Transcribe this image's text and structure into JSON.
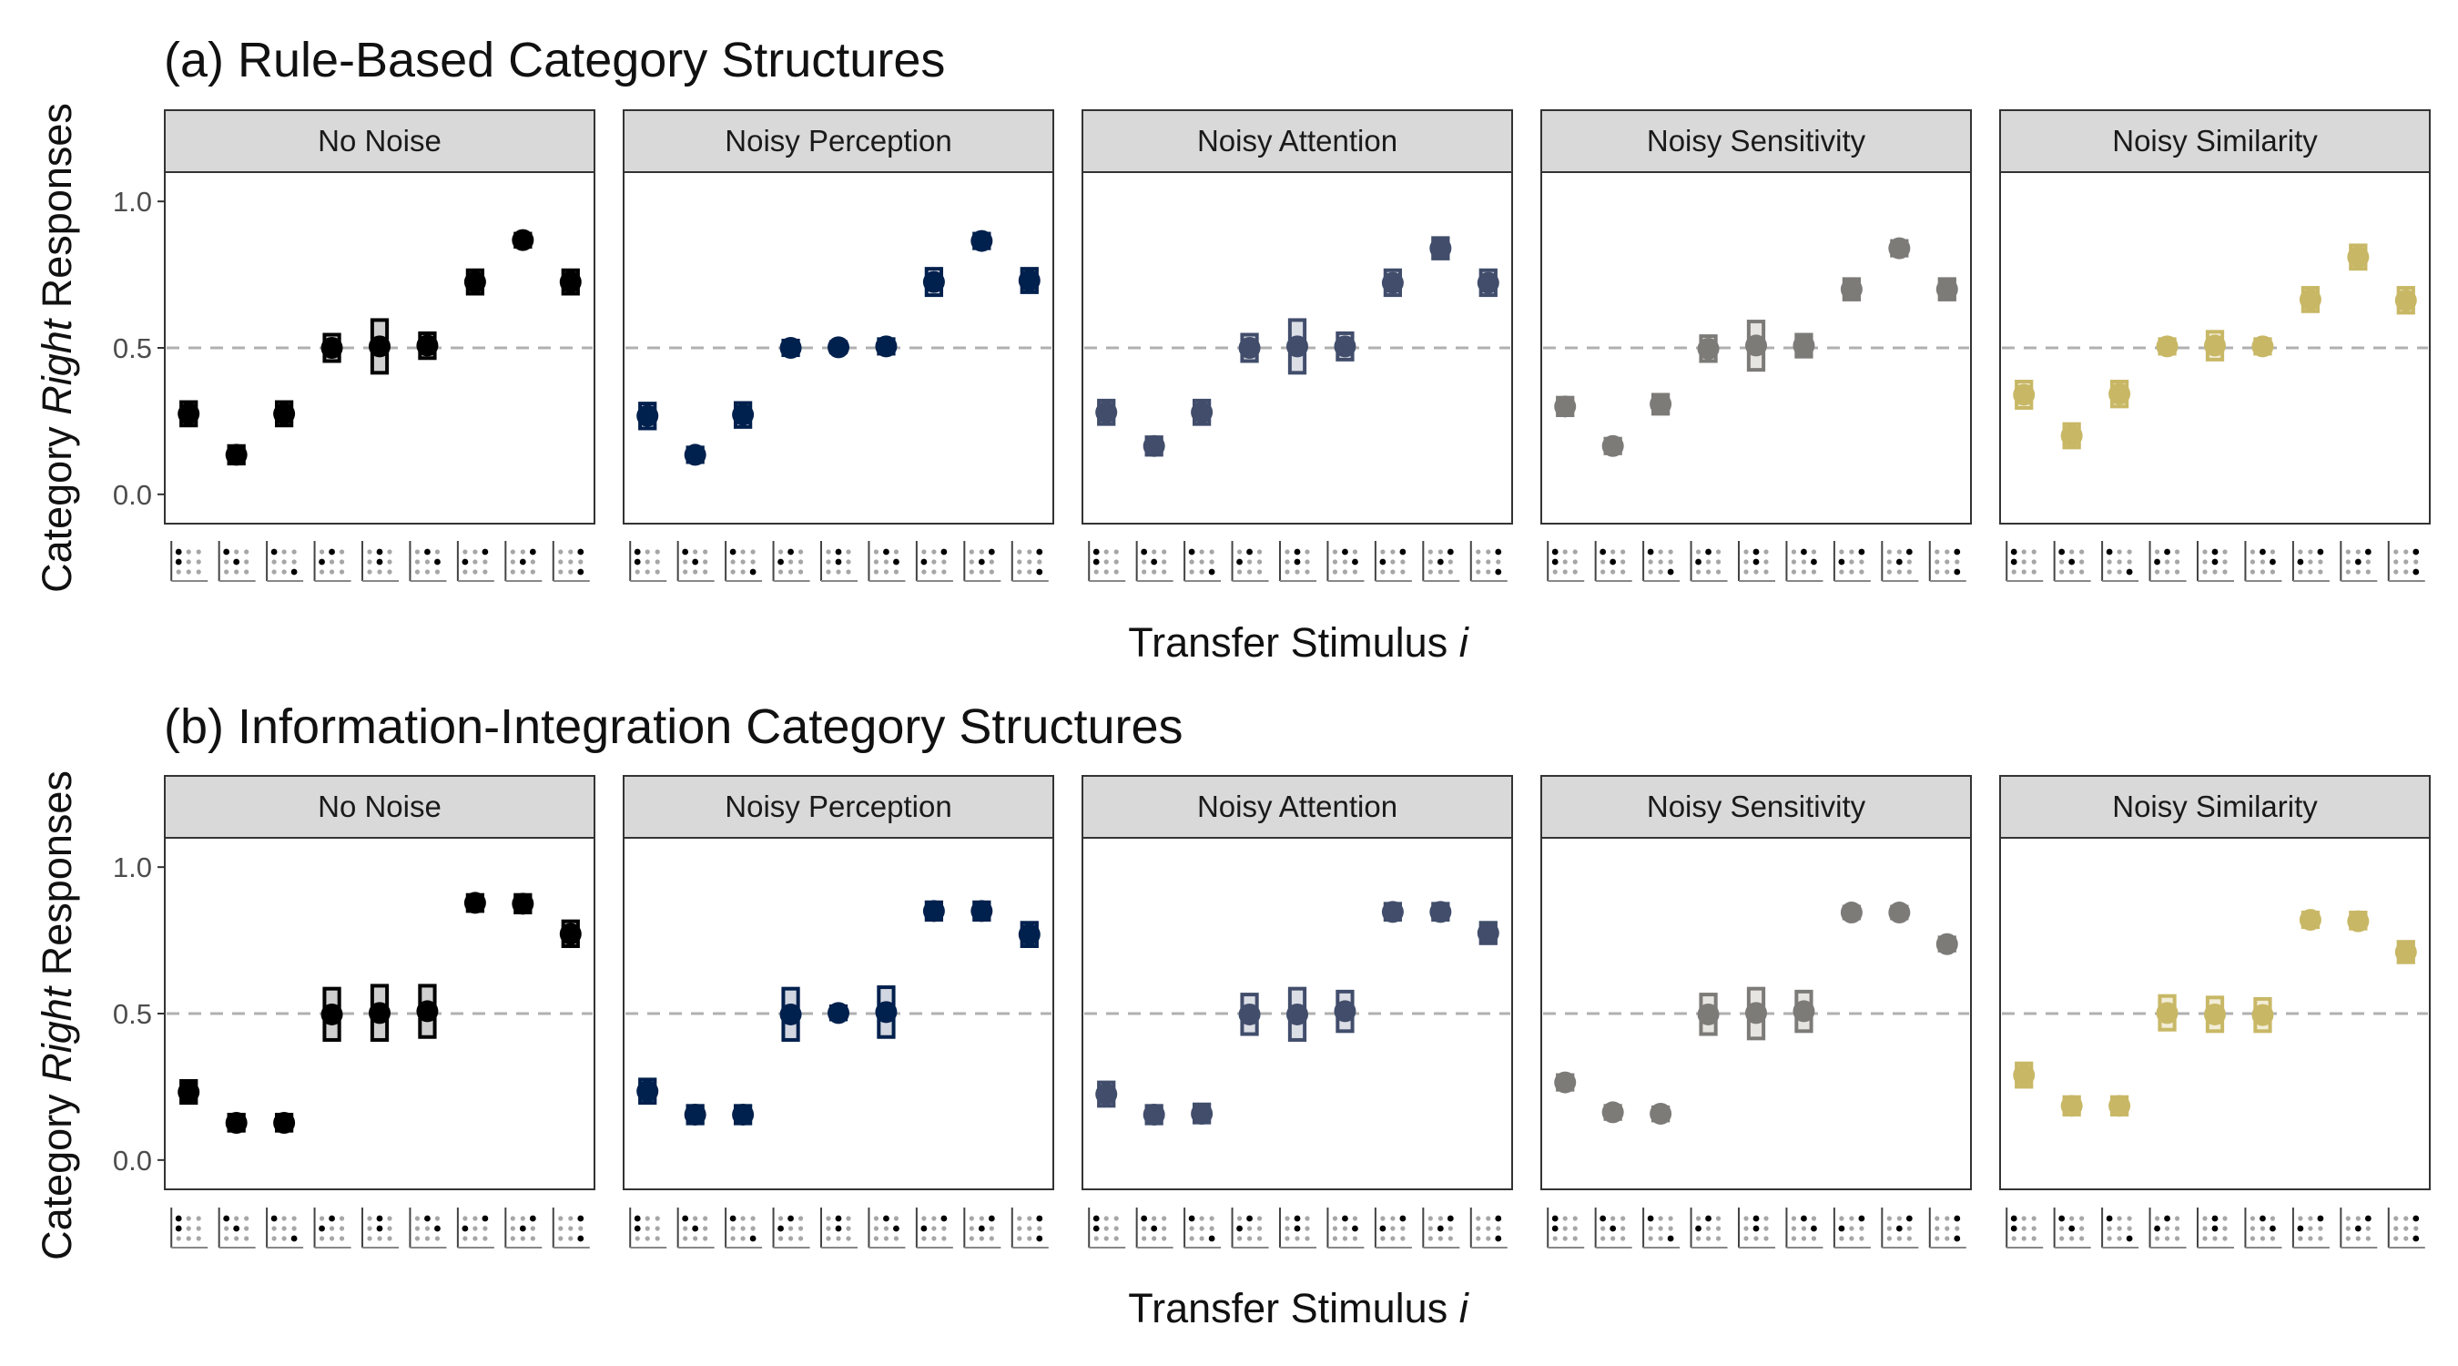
{
  "colors": {
    "No Noise": "#000000",
    "Noisy Perception": "#00204d",
    "Noisy Attention": "#414d6b",
    "Noisy Sensitivity": "#7c7b78",
    "Noisy Similarity": "#c8b866"
  },
  "fills": {
    "No Noise": "#cfcfcf",
    "Noisy Perception": "#d1d6e0",
    "Noisy Attention": "#dcdee6",
    "Noisy Sensitivity": "#e6e5e2",
    "Noisy Similarity": "#f2edd6"
  },
  "ylabel": {
    "pre": "Category ",
    "italic": "Right",
    "post": " Responses"
  },
  "xlabel": {
    "pre": "Transfer Stimulus ",
    "italic": "i"
  },
  "yticks": [
    "0.0",
    "0.5",
    "1.0"
  ],
  "stimuli": [
    {
      "dots": [
        [
          0,
          0
        ],
        [
          0,
          1
        ]
      ]
    },
    {
      "dots": [
        [
          0,
          0
        ],
        [
          1,
          1
        ]
      ]
    },
    {
      "dots": [
        [
          0,
          0
        ],
        [
          2,
          2
        ]
      ]
    },
    {
      "dots": [
        [
          1,
          0
        ],
        [
          0,
          1
        ]
      ]
    },
    {
      "dots": [
        [
          1,
          0
        ],
        [
          1,
          1
        ]
      ]
    },
    {
      "dots": [
        [
          1,
          0
        ],
        [
          2,
          1
        ]
      ]
    },
    {
      "dots": [
        [
          2,
          0
        ],
        [
          0,
          1
        ]
      ]
    },
    {
      "dots": [
        [
          2,
          0
        ],
        [
          1,
          1
        ]
      ]
    },
    {
      "dots": [
        [
          2,
          0
        ],
        [
          2,
          2
        ]
      ]
    }
  ],
  "chart_data": [
    {
      "type": "scatter",
      "title": "(a) Rule-Based Category Structures",
      "ylim": [
        0,
        1
      ],
      "reference_line": 0.5,
      "panels": [
        {
          "name": "No Noise",
          "points": [
            {
              "y": 0.275,
              "lo": 0.235,
              "hi": 0.315,
              "w": 0.62
            },
            {
              "y": 0.135,
              "lo": 0.105,
              "hi": 0.165,
              "w": 0.62
            },
            {
              "y": 0.275,
              "lo": 0.235,
              "hi": 0.315,
              "w": 0.62
            },
            {
              "y": 0.5,
              "lo": 0.455,
              "hi": 0.545,
              "w": 0.62
            },
            {
              "y": 0.505,
              "lo": 0.415,
              "hi": 0.595,
              "w": 0.62
            },
            {
              "y": 0.508,
              "lo": 0.465,
              "hi": 0.55,
              "w": 0.62
            },
            {
              "y": 0.725,
              "lo": 0.685,
              "hi": 0.765,
              "w": 0.62
            },
            {
              "y": 0.868,
              "lo": 0.845,
              "hi": 0.89,
              "w": 0.62
            },
            {
              "y": 0.725,
              "lo": 0.685,
              "hi": 0.765,
              "w": 0.62
            }
          ]
        },
        {
          "name": "Noisy Perception",
          "points": [
            {
              "y": 0.268,
              "lo": 0.225,
              "hi": 0.31,
              "w": 0.62
            },
            {
              "y": 0.135,
              "lo": 0.11,
              "hi": 0.16,
              "w": 0.62
            },
            {
              "y": 0.272,
              "lo": 0.23,
              "hi": 0.312,
              "w": 0.62
            },
            {
              "y": 0.5,
              "lo": 0.475,
              "hi": 0.525,
              "w": 0.62
            },
            {
              "y": 0.502,
              "lo": 0.485,
              "hi": 0.52,
              "w": 0.62
            },
            {
              "y": 0.505,
              "lo": 0.48,
              "hi": 0.53,
              "w": 0.62
            },
            {
              "y": 0.725,
              "lo": 0.68,
              "hi": 0.77,
              "w": 0.62
            },
            {
              "y": 0.865,
              "lo": 0.84,
              "hi": 0.89,
              "w": 0.62
            },
            {
              "y": 0.73,
              "lo": 0.69,
              "hi": 0.77,
              "w": 0.62
            }
          ]
        },
        {
          "name": "Noisy Attention",
          "points": [
            {
              "y": 0.28,
              "lo": 0.24,
              "hi": 0.32,
              "w": 0.62
            },
            {
              "y": 0.165,
              "lo": 0.135,
              "hi": 0.195,
              "w": 0.62
            },
            {
              "y": 0.28,
              "lo": 0.24,
              "hi": 0.32,
              "w": 0.62
            },
            {
              "y": 0.5,
              "lo": 0.455,
              "hi": 0.545,
              "w": 0.62
            },
            {
              "y": 0.505,
              "lo": 0.415,
              "hi": 0.595,
              "w": 0.62
            },
            {
              "y": 0.505,
              "lo": 0.46,
              "hi": 0.55,
              "w": 0.62
            },
            {
              "y": 0.722,
              "lo": 0.68,
              "hi": 0.765,
              "w": 0.62
            },
            {
              "y": 0.84,
              "lo": 0.805,
              "hi": 0.875,
              "w": 0.62
            },
            {
              "y": 0.722,
              "lo": 0.68,
              "hi": 0.765,
              "w": 0.62
            }
          ]
        },
        {
          "name": "Noisy Sensitivity",
          "points": [
            {
              "y": 0.3,
              "lo": 0.27,
              "hi": 0.33,
              "w": 0.62
            },
            {
              "y": 0.165,
              "lo": 0.14,
              "hi": 0.19,
              "w": 0.62
            },
            {
              "y": 0.308,
              "lo": 0.275,
              "hi": 0.34,
              "w": 0.62
            },
            {
              "y": 0.497,
              "lo": 0.455,
              "hi": 0.54,
              "w": 0.62
            },
            {
              "y": 0.508,
              "lo": 0.425,
              "hi": 0.59,
              "w": 0.62
            },
            {
              "y": 0.508,
              "lo": 0.47,
              "hi": 0.545,
              "w": 0.62
            },
            {
              "y": 0.7,
              "lo": 0.665,
              "hi": 0.735,
              "w": 0.62
            },
            {
              "y": 0.84,
              "lo": 0.815,
              "hi": 0.865,
              "w": 0.62
            },
            {
              "y": 0.7,
              "lo": 0.665,
              "hi": 0.735,
              "w": 0.62
            }
          ]
        },
        {
          "name": "Noisy Similarity",
          "points": [
            {
              "y": 0.34,
              "lo": 0.295,
              "hi": 0.385,
              "w": 0.62
            },
            {
              "y": 0.2,
              "lo": 0.16,
              "hi": 0.24,
              "w": 0.62
            },
            {
              "y": 0.343,
              "lo": 0.3,
              "hi": 0.385,
              "w": 0.62
            },
            {
              "y": 0.505,
              "lo": 0.48,
              "hi": 0.53,
              "w": 0.62
            },
            {
              "y": 0.508,
              "lo": 0.46,
              "hi": 0.555,
              "w": 0.62
            },
            {
              "y": 0.505,
              "lo": 0.48,
              "hi": 0.53,
              "w": 0.62
            },
            {
              "y": 0.665,
              "lo": 0.625,
              "hi": 0.705,
              "w": 0.62
            },
            {
              "y": 0.81,
              "lo": 0.77,
              "hi": 0.85,
              "w": 0.62
            },
            {
              "y": 0.662,
              "lo": 0.62,
              "hi": 0.705,
              "w": 0.62
            }
          ]
        }
      ]
    },
    {
      "type": "scatter",
      "title": "(b) Information-Integration Category Structures",
      "ylim": [
        0,
        1
      ],
      "reference_line": 0.5,
      "panels": [
        {
          "name": "No Noise",
          "points": [
            {
              "y": 0.232,
              "lo": 0.195,
              "hi": 0.27,
              "w": 0.62
            },
            {
              "y": 0.127,
              "lo": 0.1,
              "hi": 0.155,
              "w": 0.62
            },
            {
              "y": 0.127,
              "lo": 0.1,
              "hi": 0.155,
              "w": 0.62
            },
            {
              "y": 0.497,
              "lo": 0.41,
              "hi": 0.585,
              "w": 0.62
            },
            {
              "y": 0.502,
              "lo": 0.41,
              "hi": 0.595,
              "w": 0.62
            },
            {
              "y": 0.508,
              "lo": 0.42,
              "hi": 0.595,
              "w": 0.62
            },
            {
              "y": 0.878,
              "lo": 0.85,
              "hi": 0.905,
              "w": 0.62
            },
            {
              "y": 0.875,
              "lo": 0.845,
              "hi": 0.905,
              "w": 0.62
            },
            {
              "y": 0.772,
              "lo": 0.73,
              "hi": 0.815,
              "w": 0.62
            }
          ]
        },
        {
          "name": "Noisy Perception",
          "points": [
            {
              "y": 0.235,
              "lo": 0.195,
              "hi": 0.275,
              "w": 0.62
            },
            {
              "y": 0.155,
              "lo": 0.125,
              "hi": 0.185,
              "w": 0.62
            },
            {
              "y": 0.155,
              "lo": 0.125,
              "hi": 0.185,
              "w": 0.62
            },
            {
              "y": 0.497,
              "lo": 0.41,
              "hi": 0.585,
              "w": 0.62
            },
            {
              "y": 0.502,
              "lo": 0.48,
              "hi": 0.525,
              "w": 0.62
            },
            {
              "y": 0.505,
              "lo": 0.42,
              "hi": 0.59,
              "w": 0.62
            },
            {
              "y": 0.85,
              "lo": 0.82,
              "hi": 0.88,
              "w": 0.62
            },
            {
              "y": 0.85,
              "lo": 0.82,
              "hi": 0.88,
              "w": 0.62
            },
            {
              "y": 0.77,
              "lo": 0.73,
              "hi": 0.81,
              "w": 0.62
            }
          ]
        },
        {
          "name": "Noisy Attention",
          "points": [
            {
              "y": 0.225,
              "lo": 0.185,
              "hi": 0.265,
              "w": 0.62
            },
            {
              "y": 0.155,
              "lo": 0.125,
              "hi": 0.185,
              "w": 0.62
            },
            {
              "y": 0.158,
              "lo": 0.128,
              "hi": 0.19,
              "w": 0.62
            },
            {
              "y": 0.497,
              "lo": 0.43,
              "hi": 0.565,
              "w": 0.62
            },
            {
              "y": 0.497,
              "lo": 0.41,
              "hi": 0.585,
              "w": 0.62
            },
            {
              "y": 0.508,
              "lo": 0.44,
              "hi": 0.575,
              "w": 0.62
            },
            {
              "y": 0.847,
              "lo": 0.82,
              "hi": 0.875,
              "w": 0.62
            },
            {
              "y": 0.847,
              "lo": 0.82,
              "hi": 0.875,
              "w": 0.62
            },
            {
              "y": 0.775,
              "lo": 0.74,
              "hi": 0.81,
              "w": 0.62
            }
          ]
        },
        {
          "name": "Noisy Sensitivity",
          "points": [
            {
              "y": 0.265,
              "lo": 0.24,
              "hi": 0.29,
              "w": 0.62
            },
            {
              "y": 0.163,
              "lo": 0.14,
              "hi": 0.185,
              "w": 0.62
            },
            {
              "y": 0.158,
              "lo": 0.135,
              "hi": 0.18,
              "w": 0.62
            },
            {
              "y": 0.497,
              "lo": 0.43,
              "hi": 0.565,
              "w": 0.62
            },
            {
              "y": 0.502,
              "lo": 0.415,
              "hi": 0.585,
              "w": 0.62
            },
            {
              "y": 0.508,
              "lo": 0.44,
              "hi": 0.575,
              "w": 0.62
            },
            {
              "y": 0.845,
              "lo": 0.825,
              "hi": 0.865,
              "w": 0.62
            },
            {
              "y": 0.845,
              "lo": 0.825,
              "hi": 0.865,
              "w": 0.62
            },
            {
              "y": 0.737,
              "lo": 0.715,
              "hi": 0.76,
              "w": 0.62
            }
          ]
        },
        {
          "name": "Noisy Similarity",
          "points": [
            {
              "y": 0.29,
              "lo": 0.25,
              "hi": 0.33,
              "w": 0.62
            },
            {
              "y": 0.185,
              "lo": 0.155,
              "hi": 0.215,
              "w": 0.62
            },
            {
              "y": 0.185,
              "lo": 0.155,
              "hi": 0.215,
              "w": 0.62
            },
            {
              "y": 0.502,
              "lo": 0.445,
              "hi": 0.56,
              "w": 0.62
            },
            {
              "y": 0.497,
              "lo": 0.44,
              "hi": 0.555,
              "w": 0.62
            },
            {
              "y": 0.495,
              "lo": 0.44,
              "hi": 0.55,
              "w": 0.62
            },
            {
              "y": 0.82,
              "lo": 0.795,
              "hi": 0.845,
              "w": 0.62
            },
            {
              "y": 0.815,
              "lo": 0.79,
              "hi": 0.845,
              "w": 0.62
            },
            {
              "y": 0.71,
              "lo": 0.675,
              "hi": 0.745,
              "w": 0.62
            }
          ]
        }
      ]
    }
  ]
}
